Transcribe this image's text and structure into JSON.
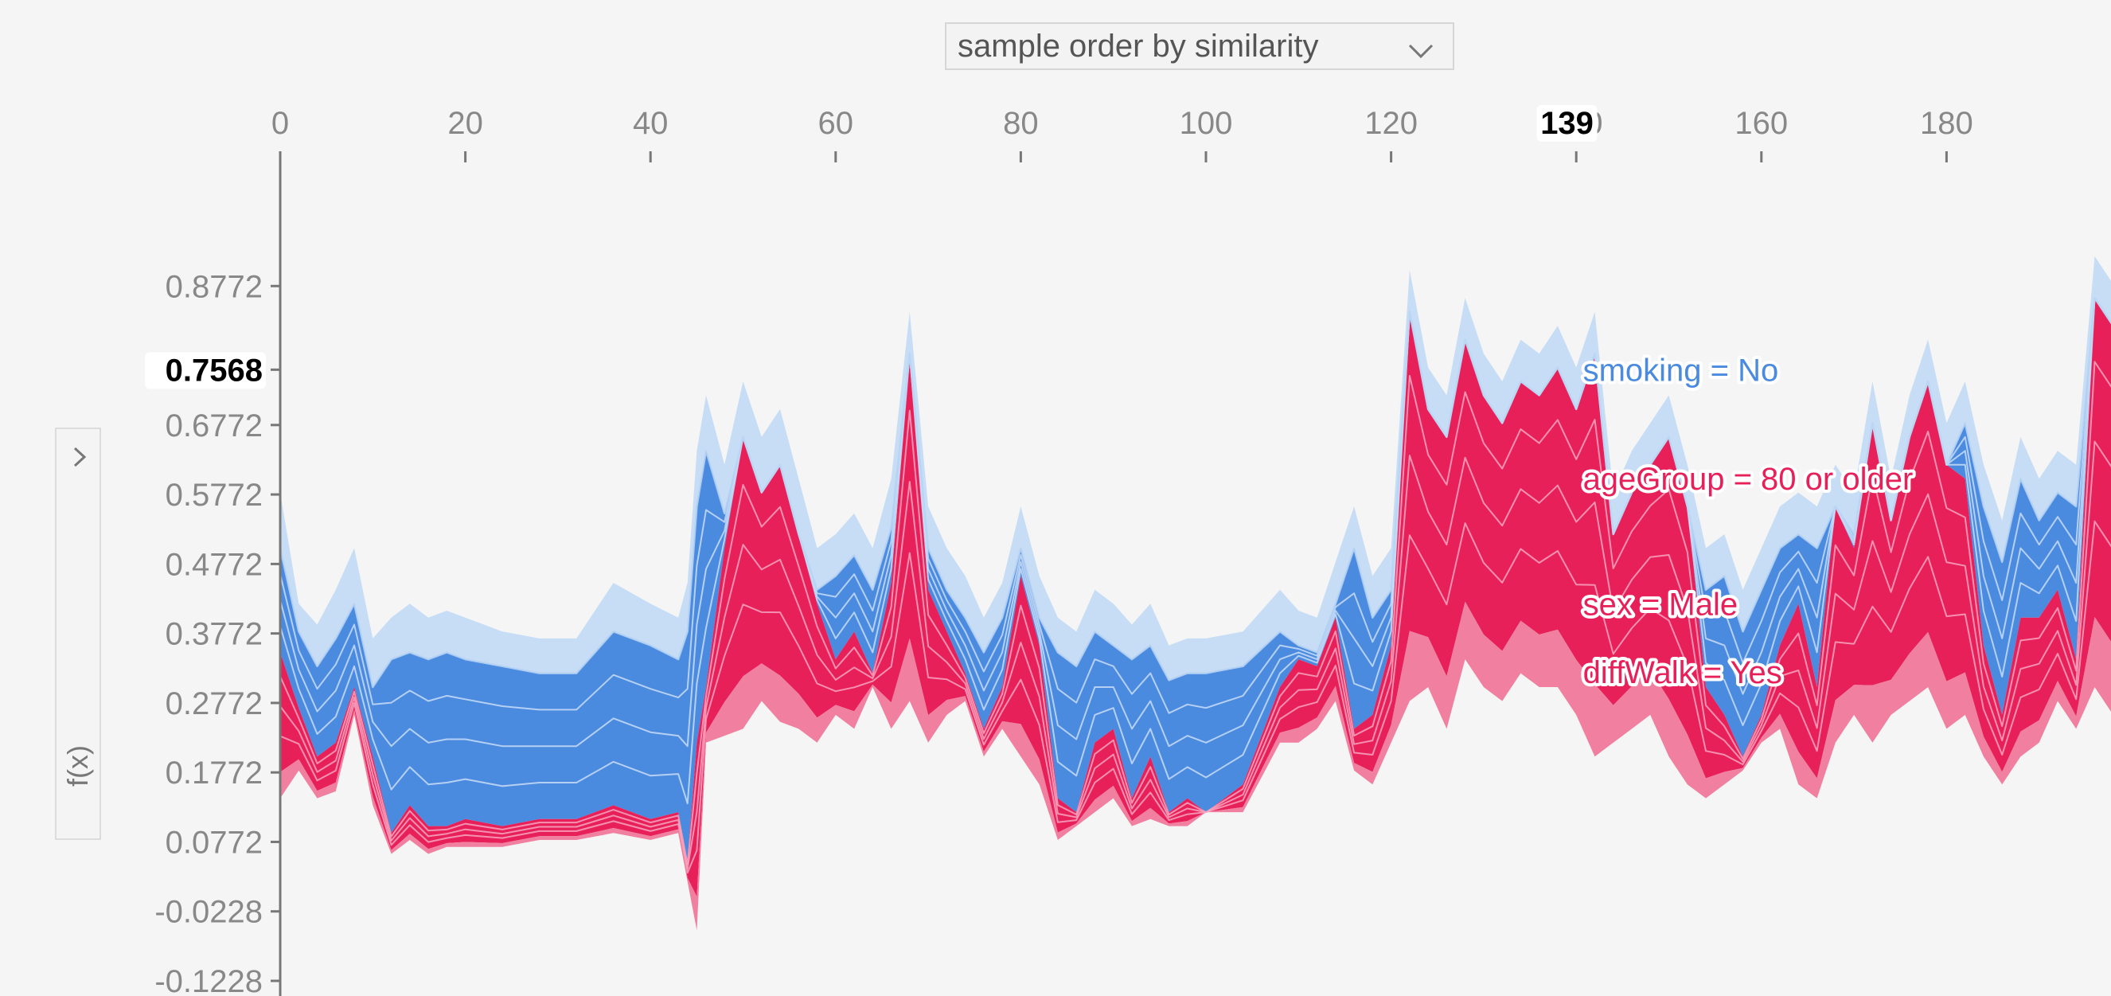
{
  "ordering": {
    "selected": "sample order by similarity"
  },
  "ylabel_toggle": {
    "label": "f(x)"
  },
  "colors": {
    "positive": "#e8205a",
    "positive_light": "#f07fa0",
    "negative": "#4a8be0",
    "negative_light": "#c6ddf5",
    "axis": "#777777",
    "tick_text": "#888888"
  },
  "chart_data": {
    "type": "area",
    "xlabel": "",
    "ylabel": "f(x)",
    "xlim": [
      0,
      199
    ],
    "ylim": [
      -0.1228,
      0.9772
    ],
    "x_ticks": [
      "0",
      "20",
      "40",
      "60",
      "80",
      "100",
      "120",
      "140",
      "160",
      "180"
    ],
    "y_ticks": [
      "0.8772",
      "0.7568",
      "0.6772",
      "0.5772",
      "0.4772",
      "0.3772",
      "0.2772",
      "0.1772",
      "0.0772",
      "-0.0228",
      "-0.1228"
    ],
    "highlight": {
      "x": 139,
      "x_label": "139",
      "y": 0.7568,
      "y_label": "0.7568"
    },
    "feature_labels": [
      {
        "text": "smoking = No",
        "effect": "negative"
      },
      {
        "text": "ageGroup = 80 or older",
        "effect": "positive"
      },
      {
        "text": "sex = Male",
        "effect": "positive"
      },
      {
        "text": "diffWalk = Yes",
        "effect": "positive"
      }
    ],
    "anchors_x": [
      0,
      2,
      4,
      6,
      8,
      10,
      12,
      14,
      16,
      18,
      20,
      24,
      28,
      32,
      36,
      40,
      43,
      44,
      45,
      46,
      48,
      50,
      52,
      54,
      56,
      58,
      60,
      62,
      64,
      66,
      68,
      70,
      72,
      74,
      76,
      78,
      80,
      82,
      84,
      86,
      88,
      90,
      92,
      94,
      96,
      98,
      100,
      104,
      108,
      110,
      112,
      114,
      116,
      118,
      120,
      122,
      124,
      126,
      128,
      130,
      132,
      134,
      136,
      138,
      140,
      142,
      144,
      146,
      148,
      150,
      152,
      154,
      156,
      158,
      160,
      162,
      164,
      166,
      168,
      170,
      172,
      174,
      176,
      178,
      180,
      182,
      184,
      186,
      188,
      190,
      192,
      194,
      196,
      198,
      199
    ],
    "series": [
      {
        "name": "top",
        "values": [
          0.58,
          0.42,
          0.39,
          0.44,
          0.5,
          0.37,
          0.4,
          0.42,
          0.4,
          0.41,
          0.4,
          0.38,
          0.37,
          0.37,
          0.45,
          0.42,
          0.4,
          0.45,
          0.64,
          0.72,
          0.62,
          0.74,
          0.66,
          0.7,
          0.6,
          0.5,
          0.52,
          0.55,
          0.5,
          0.6,
          0.84,
          0.56,
          0.5,
          0.46,
          0.4,
          0.45,
          0.56,
          0.46,
          0.4,
          0.38,
          0.44,
          0.42,
          0.39,
          0.42,
          0.36,
          0.37,
          0.37,
          0.38,
          0.44,
          0.41,
          0.4,
          0.48,
          0.56,
          0.46,
          0.5,
          0.9,
          0.76,
          0.72,
          0.86,
          0.78,
          0.74,
          0.8,
          0.78,
          0.82,
          0.76,
          0.84,
          0.58,
          0.64,
          0.68,
          0.72,
          0.62,
          0.5,
          0.52,
          0.44,
          0.5,
          0.56,
          0.58,
          0.56,
          0.62,
          0.58,
          0.74,
          0.6,
          0.72,
          0.8,
          0.68,
          0.74,
          0.62,
          0.54,
          0.66,
          0.6,
          0.64,
          0.62,
          0.92,
          0.88,
          0.84
        ]
      },
      {
        "name": "mid",
        "values": [
          0.5,
          0.38,
          0.33,
          0.37,
          0.42,
          0.3,
          0.34,
          0.35,
          0.34,
          0.35,
          0.34,
          0.33,
          0.32,
          0.32,
          0.38,
          0.36,
          0.34,
          0.38,
          0.56,
          0.64,
          0.55,
          0.66,
          0.58,
          0.62,
          0.52,
          0.44,
          0.46,
          0.49,
          0.44,
          0.53,
          0.78,
          0.5,
          0.44,
          0.4,
          0.35,
          0.4,
          0.5,
          0.4,
          0.35,
          0.33,
          0.38,
          0.36,
          0.34,
          0.36,
          0.31,
          0.32,
          0.32,
          0.33,
          0.38,
          0.36,
          0.35,
          0.42,
          0.5,
          0.4,
          0.44,
          0.84,
          0.7,
          0.66,
          0.8,
          0.72,
          0.68,
          0.74,
          0.72,
          0.76,
          0.7,
          0.78,
          0.52,
          0.58,
          0.62,
          0.66,
          0.56,
          0.44,
          0.46,
          0.38,
          0.44,
          0.5,
          0.52,
          0.5,
          0.56,
          0.52,
          0.68,
          0.54,
          0.66,
          0.74,
          0.62,
          0.68,
          0.56,
          0.48,
          0.6,
          0.54,
          0.58,
          0.56,
          0.86,
          0.82,
          0.78
        ]
      },
      {
        "name": "pos",
        "values": [
          0.35,
          0.27,
          0.2,
          0.22,
          0.3,
          0.2,
          0.09,
          0.13,
          0.1,
          0.1,
          0.11,
          0.1,
          0.11,
          0.11,
          0.13,
          0.11,
          0.12,
          0.05,
          0.22,
          0.3,
          0.5,
          0.66,
          0.58,
          0.62,
          0.52,
          0.42,
          0.34,
          0.38,
          0.32,
          0.45,
          0.78,
          0.44,
          0.38,
          0.32,
          0.24,
          0.3,
          0.46,
          0.36,
          0.14,
          0.12,
          0.22,
          0.24,
          0.14,
          0.2,
          0.12,
          0.14,
          0.12,
          0.16,
          0.3,
          0.34,
          0.33,
          0.4,
          0.24,
          0.26,
          0.36,
          0.84,
          0.7,
          0.66,
          0.8,
          0.72,
          0.68,
          0.74,
          0.72,
          0.76,
          0.7,
          0.78,
          0.52,
          0.58,
          0.62,
          0.66,
          0.56,
          0.3,
          0.26,
          0.2,
          0.26,
          0.36,
          0.42,
          0.3,
          0.56,
          0.5,
          0.68,
          0.54,
          0.66,
          0.74,
          0.62,
          0.6,
          0.36,
          0.26,
          0.4,
          0.4,
          0.44,
          0.34,
          0.86,
          0.82,
          0.7
        ]
      },
      {
        "name": "bottom",
        "values": [
          0.14,
          0.18,
          0.14,
          0.15,
          0.26,
          0.13,
          0.06,
          0.08,
          0.06,
          0.07,
          0.07,
          0.07,
          0.08,
          0.08,
          0.09,
          0.08,
          0.09,
          0.02,
          -0.05,
          0.22,
          0.23,
          0.24,
          0.28,
          0.25,
          0.24,
          0.22,
          0.26,
          0.24,
          0.3,
          0.24,
          0.28,
          0.22,
          0.26,
          0.28,
          0.2,
          0.24,
          0.2,
          0.16,
          0.08,
          0.1,
          0.12,
          0.14,
          0.1,
          0.11,
          0.1,
          0.1,
          0.12,
          0.12,
          0.22,
          0.22,
          0.24,
          0.28,
          0.18,
          0.16,
          0.22,
          0.28,
          0.3,
          0.24,
          0.34,
          0.3,
          0.28,
          0.32,
          0.3,
          0.3,
          0.26,
          0.2,
          0.22,
          0.24,
          0.26,
          0.2,
          0.16,
          0.14,
          0.16,
          0.18,
          0.22,
          0.24,
          0.16,
          0.14,
          0.22,
          0.26,
          0.22,
          0.26,
          0.28,
          0.3,
          0.24,
          0.26,
          0.2,
          0.16,
          0.2,
          0.22,
          0.28,
          0.24,
          0.3,
          0.26,
          0.24
        ]
      }
    ]
  }
}
